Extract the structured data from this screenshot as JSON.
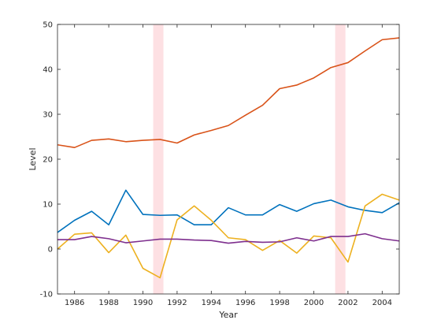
{
  "chart_data": {
    "type": "line",
    "title": "",
    "xlabel": "Year",
    "ylabel": "Level",
    "xlim": [
      1985,
      2005
    ],
    "ylim": [
      -10,
      50
    ],
    "x_ticks": [
      1986,
      1988,
      1990,
      1992,
      1994,
      1996,
      1998,
      2000,
      2002,
      2004
    ],
    "y_ticks": [
      -10,
      0,
      10,
      20,
      30,
      40,
      50
    ],
    "grid": false,
    "legend": "none",
    "x": [
      1985,
      1986,
      1987,
      1988,
      1989,
      1990,
      1991,
      1992,
      1993,
      1994,
      1995,
      1996,
      1997,
      1998,
      1999,
      2000,
      2001,
      2002,
      2003,
      2004,
      2005
    ],
    "shaded_regions": [
      {
        "x_start": 1990.6,
        "x_end": 1991.2,
        "color": "#fde0e3"
      },
      {
        "x_start": 2001.25,
        "x_end": 2001.85,
        "color": "#fde0e3"
      }
    ],
    "series": [
      {
        "color": "#0072bd",
        "values": [
          3.7,
          6.4,
          8.4,
          5.4,
          13.1,
          7.7,
          7.5,
          7.6,
          5.4,
          5.4,
          9.2,
          7.6,
          7.6,
          9.9,
          8.4,
          10.1,
          10.9,
          9.4,
          8.6,
          8.1,
          10.3
        ]
      },
      {
        "color": "#d95319",
        "values": [
          23.2,
          22.6,
          24.2,
          24.5,
          23.9,
          24.2,
          24.4,
          23.6,
          25.4,
          26.4,
          27.5,
          29.8,
          32.0,
          35.7,
          36.5,
          38.1,
          40.4,
          41.5,
          44.1,
          46.6,
          47.0
        ]
      },
      {
        "color": "#edb120",
        "values": [
          0.0,
          3.3,
          3.6,
          -0.8,
          3.1,
          -4.3,
          -6.4,
          6.5,
          9.6,
          6.4,
          2.5,
          2.1,
          -0.3,
          1.9,
          -0.9,
          2.9,
          2.5,
          -2.9,
          9.6,
          12.2,
          10.9
        ]
      },
      {
        "color": "#7e2f8e",
        "values": [
          2.1,
          2.1,
          2.8,
          2.3,
          1.4,
          1.8,
          2.2,
          2.2,
          2.0,
          1.9,
          1.3,
          1.7,
          1.5,
          1.6,
          2.5,
          1.8,
          2.8,
          2.8,
          3.4,
          2.3,
          1.8
        ]
      }
    ]
  }
}
